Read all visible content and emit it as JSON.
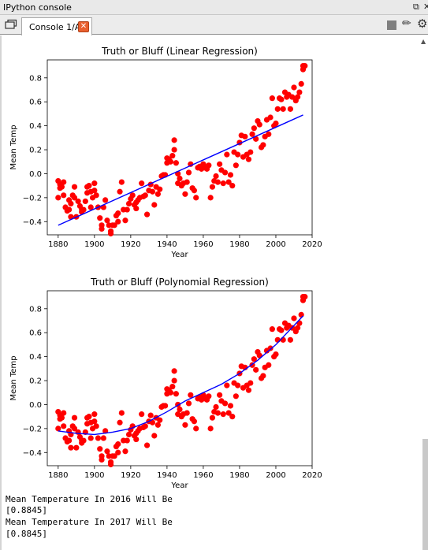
{
  "panel": {
    "title": "IPython console",
    "undock_icon": "undock-icon",
    "close_icon": "close-pane-icon"
  },
  "tabs": [
    {
      "label": "Console 1/A",
      "close_icon": "close-tab-icon"
    }
  ],
  "toolbar": {
    "icons": [
      "browse-tabs-icon",
      "stop-icon",
      "eraser-icon",
      "gear-icon"
    ]
  },
  "colors": {
    "points": "#ff0000",
    "fit_line": "#0000ff"
  },
  "chart_data": [
    {
      "type": "scatter",
      "title": "Truth or Bluff (Linear Regression)",
      "xlabel": "Year",
      "ylabel": "Mean Temp",
      "xlim": [
        1874,
        2020
      ],
      "ylim": [
        -0.51,
        0.95
      ],
      "xticks": [
        1880,
        1900,
        1920,
        1940,
        1960,
        1980,
        2000,
        2020
      ],
      "yticks": [
        -0.4,
        -0.2,
        0.0,
        0.2,
        0.4,
        0.6,
        0.8
      ],
      "ytick_labels": [
        "−0.4",
        "−0.2",
        "0.0",
        "0.2",
        "0.4",
        "0.6",
        "0.8"
      ],
      "grid": false,
      "series": [
        {
          "kind": "points",
          "color": "#ff0000",
          "x": [
            1880,
            1880,
            1881,
            1881,
            1882,
            1883,
            1883,
            1884,
            1885,
            1886,
            1886,
            1887,
            1887,
            1888,
            1889,
            1889,
            1890,
            1891,
            1892,
            1893,
            1893,
            1894,
            1895,
            1896,
            1896,
            1897,
            1898,
            1898,
            1899,
            1900,
            1900,
            1901,
            1902,
            1903,
            1904,
            1904,
            1905,
            1906,
            1907,
            1908,
            1909,
            1909,
            1910,
            1911,
            1912,
            1913,
            1913,
            1914,
            1915,
            1916,
            1917,
            1918,
            1919,
            1920,
            1921,
            1922,
            1923,
            1923,
            1924,
            1925,
            1926,
            1927,
            1928,
            1929,
            1930,
            1931,
            1932,
            1933,
            1934,
            1935,
            1936,
            1937,
            1938,
            1939,
            1940,
            1940,
            1941,
            1942,
            1943,
            1944,
            1944,
            1945,
            1946,
            1946,
            1947,
            1948,
            1949,
            1950,
            1951,
            1952,
            1953,
            1954,
            1955,
            1956,
            1957,
            1958,
            1959,
            1960,
            1961,
            1962,
            1963,
            1964,
            1965,
            1966,
            1967,
            1968,
            1969,
            1970,
            1971,
            1972,
            1973,
            1974,
            1975,
            1976,
            1977,
            1978,
            1979,
            1980,
            1981,
            1982,
            1983,
            1984,
            1985,
            1986,
            1987,
            1988,
            1989,
            1990,
            1991,
            1992,
            1993,
            1994,
            1995,
            1996,
            1997,
            1998,
            1999,
            2000,
            2001,
            2002,
            2003,
            2004,
            2005,
            2006,
            2007,
            2008,
            2009,
            2010,
            2011,
            2012,
            2013,
            2014,
            2015,
            2015,
            2016
          ],
          "y": [
            -0.2,
            -0.06,
            -0.12,
            -0.09,
            -0.11,
            -0.18,
            -0.07,
            -0.28,
            -0.31,
            -0.22,
            -0.3,
            -0.36,
            -0.25,
            -0.18,
            -0.11,
            -0.2,
            -0.36,
            -0.23,
            -0.27,
            -0.32,
            -0.3,
            -0.3,
            -0.23,
            -0.11,
            -0.16,
            -0.1,
            -0.28,
            -0.15,
            -0.2,
            -0.08,
            -0.14,
            -0.18,
            -0.28,
            -0.37,
            -0.46,
            -0.43,
            -0.28,
            -0.22,
            -0.39,
            -0.43,
            -0.48,
            -0.5,
            -0.43,
            -0.43,
            -0.35,
            -0.33,
            -0.4,
            -0.15,
            -0.07,
            -0.3,
            -0.39,
            -0.3,
            -0.25,
            -0.21,
            -0.18,
            -0.26,
            -0.24,
            -0.29,
            -0.22,
            -0.2,
            -0.08,
            -0.19,
            -0.18,
            -0.34,
            -0.14,
            -0.09,
            -0.15,
            -0.26,
            -0.11,
            -0.17,
            -0.13,
            -0.02,
            -0.01,
            -0.01,
            0.09,
            0.13,
            0.12,
            0.1,
            0.15,
            0.28,
            0.2,
            0.09,
            -0.08,
            0.0,
            -0.04,
            -0.1,
            -0.08,
            -0.17,
            -0.07,
            0.01,
            0.08,
            -0.12,
            -0.14,
            -0.2,
            0.05,
            0.06,
            0.04,
            0.08,
            0.05,
            0.04,
            0.07,
            -0.2,
            -0.11,
            -0.06,
            -0.02,
            -0.07,
            0.08,
            0.03,
            -0.08,
            0.01,
            0.16,
            -0.07,
            -0.01,
            -0.1,
            0.18,
            0.07,
            0.16,
            0.26,
            0.32,
            0.14,
            0.31,
            0.16,
            0.12,
            0.18,
            0.33,
            0.38,
            0.29,
            0.44,
            0.41,
            0.22,
            0.24,
            0.31,
            0.45,
            0.33,
            0.47,
            0.63,
            0.4,
            0.42,
            0.54,
            0.63,
            0.62,
            0.54,
            0.68,
            0.64,
            0.66,
            0.54,
            0.64,
            0.72,
            0.61,
            0.64,
            0.68,
            0.75,
            0.87,
            0.9,
            0.9
          ]
        },
        {
          "kind": "line",
          "color": "#0000ff",
          "name": "",
          "x": [
            1880,
            2015
          ],
          "y": [
            -0.43,
            0.49
          ]
        }
      ]
    },
    {
      "type": "scatter",
      "title": "Truth or Bluff (Polynomial Regression)",
      "xlabel": "Year",
      "ylabel": "Mean Temp",
      "xlim": [
        1874,
        2020
      ],
      "ylim": [
        -0.51,
        0.95
      ],
      "xticks": [
        1880,
        1900,
        1920,
        1940,
        1960,
        1980,
        2000,
        2020
      ],
      "yticks": [
        -0.4,
        -0.2,
        0.0,
        0.2,
        0.4,
        0.6,
        0.8
      ],
      "ytick_labels": [
        "−0.4",
        "−0.2",
        "0.0",
        "0.2",
        "0.4",
        "0.6",
        "0.8"
      ],
      "grid": false,
      "series": [
        {
          "kind": "points",
          "color": "#ff0000",
          "same_as_chart": 0
        },
        {
          "kind": "line",
          "color": "#0000ff",
          "name": "",
          "x": [
            1880,
            1890,
            1900,
            1910,
            1920,
            1930,
            1940,
            1950,
            1960,
            1970,
            1980,
            1990,
            2000,
            2010,
            2015
          ],
          "y": [
            -0.22,
            -0.24,
            -0.25,
            -0.23,
            -0.2,
            -0.14,
            -0.06,
            0.03,
            0.1,
            0.17,
            0.26,
            0.37,
            0.5,
            0.66,
            0.74
          ]
        }
      ]
    }
  ],
  "console_output": [
    "Mean Temperature In 2016 Will Be",
    "[0.8845]",
    "Mean Temperature In 2017 Will Be",
    "[0.8845]"
  ]
}
